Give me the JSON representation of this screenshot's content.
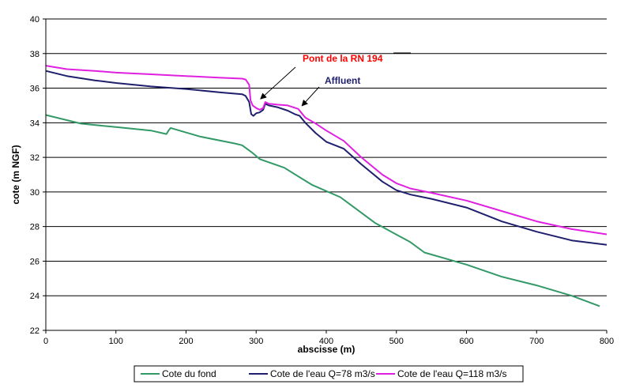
{
  "chart_data": {
    "type": "line",
    "title": "",
    "xlabel": "abscisse (m)",
    "ylabel": "cote (m NGF)",
    "xlim": [
      0,
      800
    ],
    "ylim": [
      22,
      40
    ],
    "x_ticks": [
      0,
      100,
      200,
      300,
      400,
      500,
      600,
      700,
      800
    ],
    "y_ticks": [
      22,
      24,
      26,
      28,
      30,
      32,
      34,
      36,
      38,
      40
    ],
    "grid": "horizontal",
    "legend_position": "bottom",
    "series": [
      {
        "name": "Cote du fond",
        "color": "#339966",
        "x": [
          0,
          50,
          100,
          150,
          172,
          175,
          178,
          220,
          270,
          280,
          295,
          305,
          340,
          380,
          420,
          470,
          520,
          540,
          600,
          650,
          700,
          750,
          790
        ],
        "y": [
          34.45,
          33.95,
          33.75,
          33.55,
          33.35,
          33.55,
          33.7,
          33.2,
          32.8,
          32.7,
          32.25,
          31.9,
          31.4,
          30.4,
          29.7,
          28.2,
          27.1,
          26.5,
          25.8,
          25.1,
          24.6,
          24.0,
          23.4
        ]
      },
      {
        "name": "Cote de l'eau Q=78 m3/s",
        "color": "#1f1f6e",
        "x": [
          0,
          30,
          70,
          100,
          150,
          200,
          250,
          280,
          285,
          290,
          293,
          296,
          300,
          305,
          310,
          313,
          318,
          330,
          345,
          355,
          362,
          370,
          385,
          400,
          425,
          450,
          480,
          500,
          520,
          550,
          600,
          650,
          700,
          750,
          800
        ],
        "y": [
          37.0,
          36.7,
          36.45,
          36.3,
          36.1,
          35.95,
          35.75,
          35.65,
          35.55,
          35.2,
          34.5,
          34.4,
          34.55,
          34.6,
          34.75,
          35.1,
          35.0,
          34.9,
          34.7,
          34.5,
          34.4,
          34.0,
          33.4,
          32.9,
          32.5,
          31.6,
          30.6,
          30.1,
          29.85,
          29.6,
          29.1,
          28.3,
          27.7,
          27.2,
          26.95
        ]
      },
      {
        "name": "Cote de l'eau Q=118 m3/s",
        "color": "#e020e0",
        "x": [
          0,
          30,
          70,
          100,
          150,
          200,
          250,
          280,
          285,
          290,
          292,
          295,
          300,
          305,
          310,
          313,
          318,
          330,
          345,
          360,
          370,
          385,
          400,
          425,
          450,
          480,
          500,
          520,
          550,
          600,
          650,
          700,
          750,
          800
        ],
        "y": [
          37.3,
          37.1,
          37.0,
          36.9,
          36.8,
          36.7,
          36.6,
          36.55,
          36.5,
          36.2,
          35.3,
          35.0,
          34.85,
          34.75,
          34.85,
          35.2,
          35.1,
          35.05,
          35.0,
          34.8,
          34.3,
          33.95,
          33.55,
          32.95,
          32.0,
          31.0,
          30.5,
          30.2,
          29.95,
          29.5,
          28.9,
          28.3,
          27.85,
          27.55
        ]
      }
    ],
    "annotations": [
      {
        "text": "Pont de la RN 194",
        "color": "#ff0000",
        "points_to": {
          "x": 303,
          "y": 35.2
        }
      },
      {
        "text": "Affluent",
        "color": "#1f1f6e",
        "points_to": {
          "x": 362,
          "y": 34.8
        }
      }
    ]
  }
}
